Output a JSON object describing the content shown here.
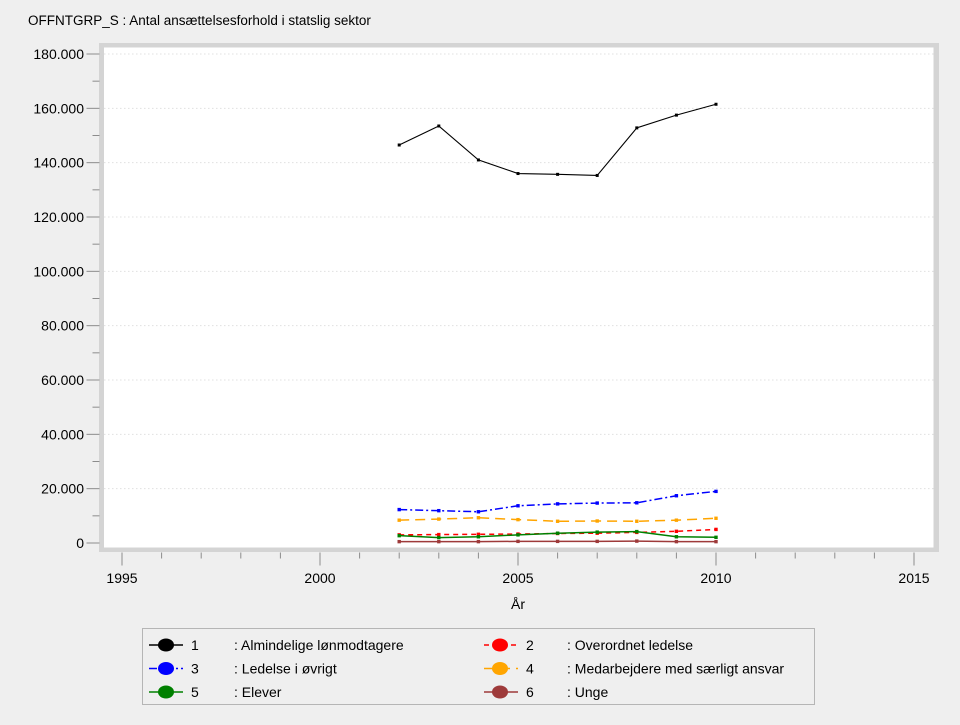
{
  "chart_data": {
    "type": "line",
    "title": "OFFNTGRP_S : Antal ansættelsesforhold i statslig sektor",
    "xlabel": "År",
    "x": [
      2002,
      2003,
      2004,
      2005,
      2006,
      2007,
      2008,
      2009,
      2010
    ],
    "x_axis_range": [
      1995,
      2015
    ],
    "x_ticks_major": [
      1995,
      2000,
      2005,
      2010,
      2015
    ],
    "ylim": [
      0,
      180000
    ],
    "y_ticks": [
      {
        "value": 0,
        "label": "0"
      },
      {
        "value": 20000,
        "label": "20.000"
      },
      {
        "value": 40000,
        "label": "40.000"
      },
      {
        "value": 60000,
        "label": "60.000"
      },
      {
        "value": 80000,
        "label": "80.000"
      },
      {
        "value": 100000,
        "label": "100.000"
      },
      {
        "value": 120000,
        "label": "120.000"
      },
      {
        "value": 140000,
        "label": "140.000"
      },
      {
        "value": 160000,
        "label": "160.000"
      },
      {
        "value": 180000,
        "label": "180.000"
      }
    ],
    "y_ticks_minor": [
      10000,
      30000,
      50000,
      70000,
      90000,
      110000,
      130000,
      150000,
      170000
    ],
    "grid": "horizontal-dotted",
    "series": [
      {
        "id": "1",
        "name": "Almindelige lønmodtagere",
        "color": "#000000",
        "line_style": "solid",
        "marker": "square",
        "values": [
          146500,
          153500,
          141000,
          136000,
          135700,
          135300,
          152800,
          157500,
          161500
        ]
      },
      {
        "id": "2",
        "name": "Overordnet ledelse",
        "color": "#ff0000",
        "line_style": "dashed",
        "marker": "square",
        "values": [
          3000,
          3100,
          3200,
          3300,
          3500,
          3600,
          3900,
          4300,
          5000
        ]
      },
      {
        "id": "3",
        "name": "Ledelse i øvrigt",
        "color": "#0000ff",
        "line_style": "dashdot",
        "marker": "square",
        "values": [
          12300,
          11900,
          11500,
          13700,
          14400,
          14700,
          14800,
          17400,
          19000
        ]
      },
      {
        "id": "4",
        "name": "Medarbejdere med særligt ansvar",
        "color": "#ffa500",
        "line_style": "longdash",
        "marker": "square",
        "values": [
          8400,
          8800,
          9300,
          8600,
          8000,
          8100,
          8000,
          8400,
          9100
        ]
      },
      {
        "id": "5",
        "name": "Elever",
        "color": "#008000",
        "line_style": "solid",
        "marker": "square",
        "values": [
          2700,
          2000,
          2300,
          3000,
          3600,
          4000,
          4200,
          2300,
          2100
        ]
      },
      {
        "id": "6",
        "name": "Unge",
        "color": "#9e3a3a",
        "line_style": "solid",
        "marker": "square",
        "values": [
          500,
          500,
          500,
          600,
          600,
          600,
          700,
          500,
          500
        ]
      }
    ],
    "legend": {
      "position": "bottom",
      "label_prefix": ": ",
      "columns": [
        [
          "1",
          "3",
          "5"
        ],
        [
          "2",
          "4",
          "6"
        ]
      ]
    }
  },
  "colors": {
    "background": "#efefef",
    "plot_background": "#ffffff",
    "plot_frame": "#d4d4d4",
    "grid": "#e0e0e0",
    "tick": "#8c8c8c",
    "text": "#000000",
    "legend_border": "#b5b5b5",
    "legend_background": "#efefef"
  }
}
